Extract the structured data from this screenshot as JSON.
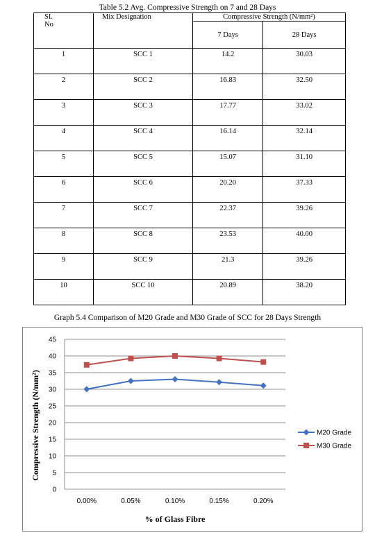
{
  "table": {
    "title": "Table 5.2 Avg. Compressive Strength on 7 and 28 Days",
    "headers": {
      "sl": "SI.",
      "sl2": "No",
      "mix": "Mix Designation",
      "cs": "Compressive Strength (N/mm²)",
      "day7": "7 Days",
      "day28": "28 Days"
    },
    "rows": [
      {
        "no": "1",
        "mix": "SCC 1",
        "d7": "14.2",
        "d28": "30.03"
      },
      {
        "no": "2",
        "mix": "SCC 2",
        "d7": "16.83",
        "d28": "32.50"
      },
      {
        "no": "3",
        "mix": "SCC 3",
        "d7": "17.77",
        "d28": "33.02"
      },
      {
        "no": "4",
        "mix": "SCC 4",
        "d7": "16.14",
        "d28": "32.14"
      },
      {
        "no": "5",
        "mix": "SCC 5",
        "d7": "15.07",
        "d28": "31.10"
      },
      {
        "no": "6",
        "mix": "SCC 6",
        "d7": "20.20",
        "d28": "37.33"
      },
      {
        "no": "7",
        "mix": "SCC 7",
        "d7": "22.37",
        "d28": "39.26"
      },
      {
        "no": "8",
        "mix": "SCC 8",
        "d7": "23.53",
        "d28": "40.00"
      },
      {
        "no": "9",
        "mix": "SCC 9",
        "d7": "21.3",
        "d28": "39.26"
      },
      {
        "no": "10",
        "mix": "SCC 10",
        "d7": "20.89",
        "d28": "38.20"
      }
    ]
  },
  "graph_title": "Graph 5.4 Comparison of M20 Grade and M30 Grade of SCC for 28 Days Strength",
  "chart_data": {
    "type": "line",
    "categories": [
      "0.00%",
      "0.05%",
      "0.10%",
      "0.15%",
      "0.20%"
    ],
    "series": [
      {
        "name": "M20 Grade",
        "values": [
          30.03,
          32.5,
          33.02,
          32.14,
          31.1
        ],
        "color": "#4472c4",
        "marker": "diamond"
      },
      {
        "name": "M30 Grade",
        "values": [
          37.33,
          39.26,
          40.0,
          39.26,
          38.2
        ],
        "color": "#c0504d",
        "marker": "square"
      }
    ],
    "title": "",
    "xlabel": "% of Glass Fibre",
    "ylabel": "Compressive Strength (N/mm²)",
    "ylim": [
      0,
      45
    ],
    "yticks": [
      0,
      5,
      10,
      15,
      20,
      25,
      30,
      35,
      40,
      45
    ],
    "grid": true,
    "legend": "right"
  }
}
